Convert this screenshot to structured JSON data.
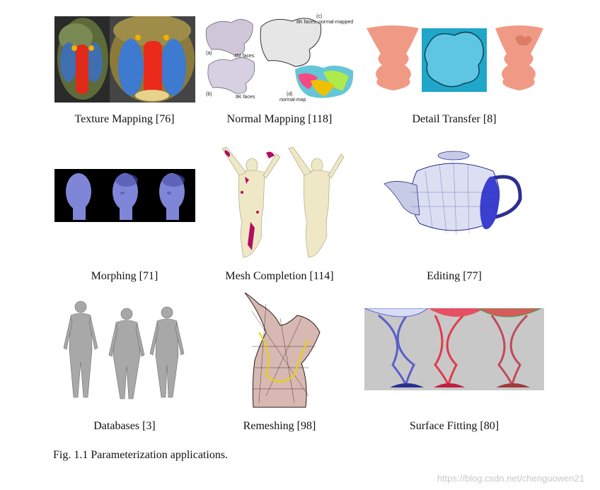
{
  "captions": {
    "texture_mapping": "Texture Mapping [76]",
    "normal_mapping": "Normal Mapping [118]",
    "detail_transfer": "Detail Transfer [8]",
    "morphing": "Morphing [71]",
    "mesh_completion": "Mesh Completion [114]",
    "editing": "Editing [77]",
    "databases": "Databases [3]",
    "remeshing": "Remeshing [98]",
    "surface_fitting": "Surface Fitting [80]"
  },
  "normal_mapping_labels": {
    "a": "(a)",
    "a_text": "4M faces",
    "b": "(b)",
    "b_text": "8K faces",
    "c": "(c)",
    "c_text": "8K faces, normal-mapped",
    "d": "(d)",
    "d_text": "normal-map"
  },
  "figure_caption": "Fig. 1.1  Parameterization applications.",
  "watermark": "https://blog.csdn.net/chenguowen21"
}
